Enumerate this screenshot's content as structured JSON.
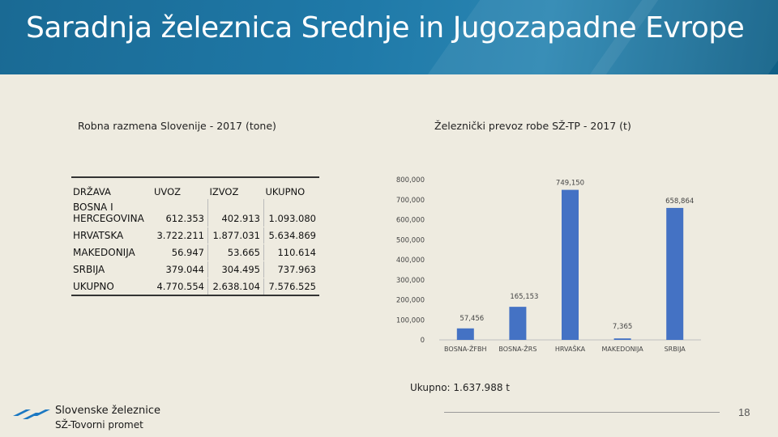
{
  "title": "Saradnja železnica Srednje in Jugozapadne Evrope",
  "left_caption": "Robna razmena Slovenije - 2017 (tone)",
  "right_caption": "Železnički prevoz robe SŽ-TP - 2017 (t)",
  "table": {
    "headers": [
      "DRŽAVA",
      "UVOZ",
      "IZVOZ",
      "UKUPNO"
    ],
    "rows": [
      {
        "country": "BOSNA I HERCEGOVINA",
        "uvoz": "612.353",
        "izvoz": "402.913",
        "ukupno": "1.093.080"
      },
      {
        "country": "HRVATSKA",
        "uvoz": "3.722.211",
        "izvoz": "1.877.031",
        "ukupno": "5.634.869"
      },
      {
        "country": "MAKEDONIJA",
        "uvoz": "56.947",
        "izvoz": "53.665",
        "ukupno": "110.614"
      },
      {
        "country": "SRBIJA",
        "uvoz": "379.044",
        "izvoz": "304.495",
        "ukupno": "737.963"
      },
      {
        "country": "UKUPNO",
        "uvoz": "4.770.554",
        "izvoz": "2.638.104",
        "ukupno": "7.576.525"
      }
    ]
  },
  "chart_data": {
    "type": "bar",
    "title": "Železnički prevoz robe SŽ-TP - 2017 (t)",
    "categories": [
      "BOSNA-ŽFBH",
      "BOSNA-ŽRS",
      "HRVAŠKA",
      "MAKEDONIJA",
      "SRBIJA"
    ],
    "values": [
      57456,
      165153,
      749150,
      7365,
      658864
    ],
    "data_labels": [
      "57,456",
      "165,153",
      "749,150",
      "7,365",
      "658,864"
    ],
    "ylim": [
      0,
      800000
    ],
    "yticks": [
      0,
      100000,
      200000,
      300000,
      400000,
      500000,
      600000,
      700000,
      800000
    ],
    "ytick_labels": [
      "0",
      "100,000",
      "200,000",
      "300,000",
      "400,000",
      "500,000",
      "600,000",
      "700,000",
      "800,000"
    ],
    "bar_color": "#4472c4",
    "grid": false,
    "xlabel": "",
    "ylabel": ""
  },
  "total_label": "Ukupno: 1.637.988 t",
  "logo": {
    "line1": "Slovenske železnice",
    "line2": "SŽ-Tovorni promet",
    "icon": "sz-logo-icon"
  },
  "page_number": "18",
  "colors": {
    "banner": "#1f79a8",
    "background": "#eeebe0",
    "logo_blue": "#1b78c2"
  }
}
